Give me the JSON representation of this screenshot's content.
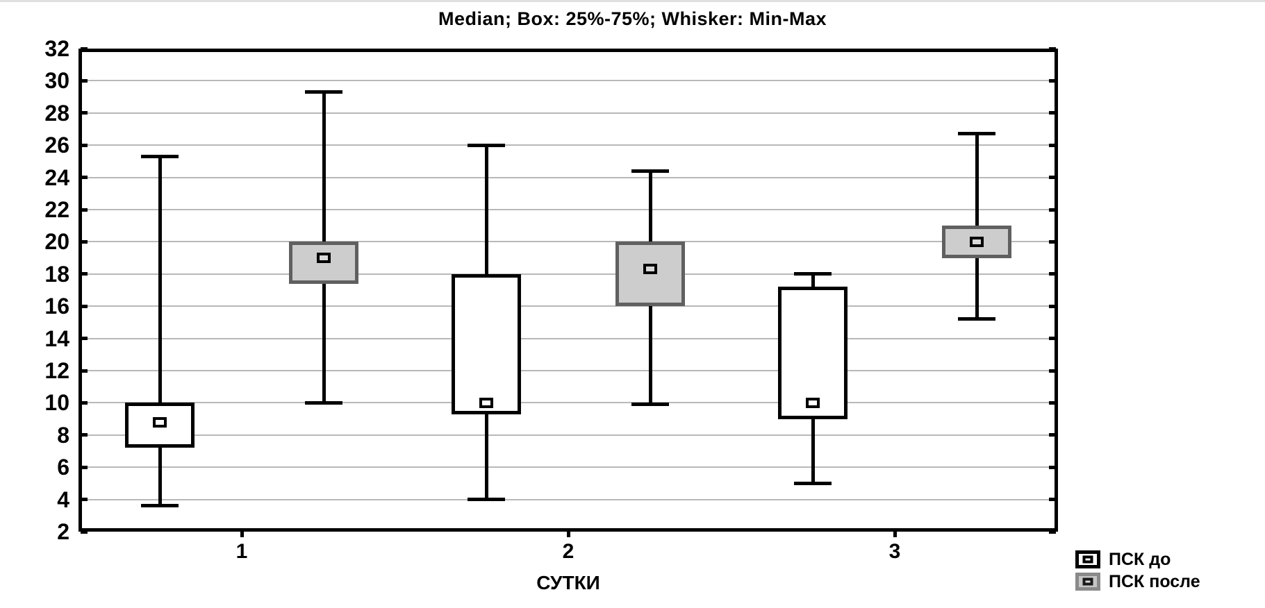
{
  "chart_data": {
    "type": "box",
    "title": "Median; Box: 25%-75%; Whisker: Min-Max",
    "xlabel": "СУТКИ",
    "ylabel": "",
    "categories": [
      "1",
      "2",
      "3"
    ],
    "ylim": [
      2,
      32
    ],
    "ytick_step": 2,
    "grid": "horizontal",
    "legend_position": "bottom-right",
    "colors": {
      "gridline": "#b8b8b8",
      "frame": "#000000",
      "background": "#ffffff"
    },
    "series": [
      {
        "name": "ПСК до",
        "fill": "#ffffff",
        "border": "#000000",
        "marker_fill": "#ffffff",
        "boxes": [
          {
            "category": "1",
            "min": 3.6,
            "q1": 7.2,
            "median": 8.8,
            "q3": 10.0,
            "max": 25.3
          },
          {
            "category": "2",
            "min": 4.0,
            "q1": 9.3,
            "median": 10.0,
            "q3": 18.0,
            "max": 26.0
          },
          {
            "category": "3",
            "min": 5.0,
            "q1": 9.0,
            "median": 10.0,
            "q3": 17.2,
            "max": 18.0
          }
        ]
      },
      {
        "name": "ПСК после",
        "fill": "#cdcdcd",
        "border": "#606060",
        "marker_fill": "#d8d8d8",
        "boxes": [
          {
            "category": "1",
            "min": 10.0,
            "q1": 17.4,
            "median": 19.0,
            "q3": 20.0,
            "max": 29.3
          },
          {
            "category": "2",
            "min": 9.9,
            "q1": 16.0,
            "median": 18.3,
            "q3": 20.0,
            "max": 24.4
          },
          {
            "category": "3",
            "min": 15.2,
            "q1": 19.0,
            "median": 20.0,
            "q3": 21.0,
            "max": 26.7
          }
        ]
      }
    ]
  }
}
